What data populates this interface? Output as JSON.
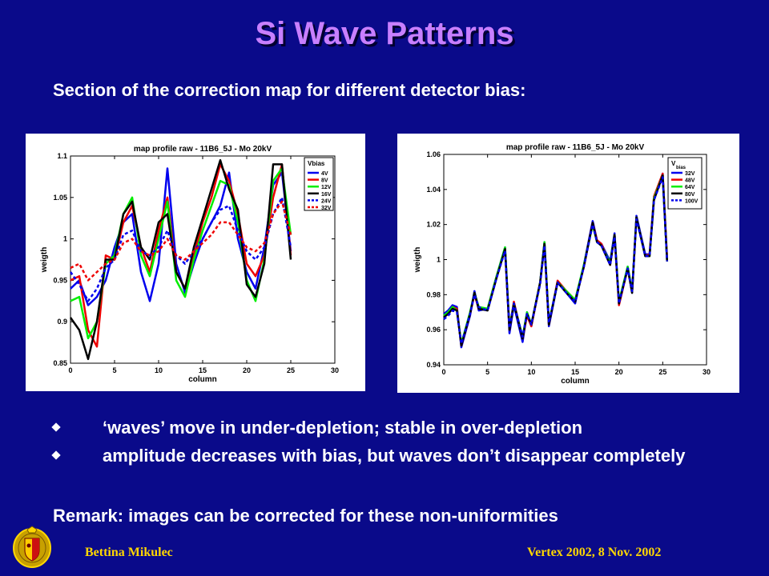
{
  "slide": {
    "title": "Si Wave Patterns",
    "subtitle": "Section of the correction map for different detector bias:",
    "bullets": [
      "‘waves’ move in under-depletion; stable in over-depletion",
      "amplitude decreases with bias, but waves don’t disappear completely"
    ],
    "remark": "Remark: images can be corrected for these non-uniformities",
    "footer_left": "Bettina Mikulec",
    "footer_right": "Vertex 2002, 8 Nov. 2002",
    "colors": {
      "background": "#0a0a8a",
      "title": "#c87fff",
      "footer": "#ffd700"
    }
  },
  "chart_data": [
    {
      "type": "line",
      "title": "map profile raw   -   11B6_5J   -   Mo 20kV",
      "xlabel": "column",
      "ylabel": "weigth",
      "xlim": [
        0,
        30
      ],
      "ylim": [
        0.85,
        1.1
      ],
      "xticks": [
        "0",
        "5",
        "10",
        "15",
        "20",
        "25",
        "30"
      ],
      "yticks": [
        "0.85",
        "0.9",
        "0.95",
        "1",
        "1.05",
        "1.1"
      ],
      "legend_title": "Vbias",
      "legend_position": "top-right",
      "x": [
        0,
        1,
        2,
        3,
        4,
        5,
        6,
        7,
        8,
        9,
        10,
        11,
        12,
        13,
        14,
        15,
        16,
        17,
        18,
        19,
        20,
        21,
        22,
        23,
        24,
        25
      ],
      "series": [
        {
          "name": "4V",
          "color": "#0000ee",
          "dash": false,
          "values": [
            0.94,
            0.95,
            0.92,
            0.93,
            0.95,
            0.99,
            1.02,
            1.03,
            0.96,
            0.925,
            0.97,
            1.085,
            0.97,
            0.935,
            0.97,
            1.0,
            1.02,
            1.04,
            1.08,
            1.0,
            0.96,
            0.94,
            0.99,
            1.065,
            1.08,
            0.985
          ]
        },
        {
          "name": "8V",
          "color": "#ee0000",
          "dash": false,
          "values": [
            0.95,
            0.955,
            0.89,
            0.87,
            0.98,
            0.975,
            1.02,
            1.04,
            0.99,
            0.96,
            1.01,
            1.05,
            0.96,
            0.94,
            0.98,
            1.02,
            1.05,
            1.09,
            1.07,
            1.03,
            0.97,
            0.955,
            0.98,
            1.05,
            1.09,
            0.98
          ]
        },
        {
          "name": "12V",
          "color": "#00ee00",
          "dash": false,
          "values": [
            0.925,
            0.93,
            0.88,
            0.9,
            0.97,
            0.98,
            1.03,
            1.05,
            0.98,
            0.955,
            1.0,
            1.045,
            0.95,
            0.93,
            0.975,
            1.01,
            1.04,
            1.07,
            1.065,
            1.02,
            0.95,
            0.925,
            0.975,
            1.07,
            1.085,
            1.005
          ]
        },
        {
          "name": "16V",
          "color": "#000000",
          "dash": false,
          "values": [
            0.905,
            0.89,
            0.855,
            0.9,
            0.975,
            0.975,
            1.03,
            1.045,
            0.99,
            0.975,
            1.02,
            1.03,
            0.96,
            0.94,
            0.99,
            1.025,
            1.06,
            1.095,
            1.06,
            1.035,
            0.945,
            0.93,
            0.97,
            1.09,
            1.09,
            0.975
          ]
        },
        {
          "name": "24V",
          "color": "#0000ee",
          "dash": true,
          "values": [
            0.96,
            0.945,
            0.925,
            0.94,
            0.965,
            0.975,
            1.005,
            1.01,
            0.985,
            0.98,
            0.99,
            1.01,
            0.98,
            0.97,
            0.985,
            1.0,
            1.02,
            1.035,
            1.04,
            1.01,
            0.985,
            0.975,
            0.99,
            1.03,
            1.05,
            0.99
          ]
        },
        {
          "name": "32V",
          "color": "#ee0000",
          "dash": true,
          "values": [
            0.965,
            0.97,
            0.95,
            0.96,
            0.97,
            0.975,
            0.995,
            1.0,
            0.985,
            0.98,
            0.985,
            1.0,
            0.98,
            0.975,
            0.985,
            0.995,
            1.005,
            1.02,
            1.02,
            1.005,
            0.99,
            0.985,
            0.995,
            1.03,
            1.045,
            1.005
          ]
        }
      ]
    },
    {
      "type": "line",
      "title": "map profile raw   -   11B6_5J   -   Mo 20kV",
      "xlabel": "column",
      "ylabel": "weigth",
      "xlim": [
        0,
        30
      ],
      "ylim": [
        0.94,
        1.06
      ],
      "xticks": [
        "0",
        "5",
        "10",
        "15",
        "20",
        "25",
        "30"
      ],
      "yticks": [
        "0.94",
        "0.96",
        "0.98",
        "1",
        "1.02",
        "1.04",
        "1.06"
      ],
      "legend_title": "V",
      "legend_title_sub": "bias",
      "legend_position": "top-right",
      "x": [
        0,
        0.5,
        1,
        1.5,
        2,
        3,
        3.5,
        4,
        5,
        6,
        7,
        7.5,
        8,
        9,
        9.5,
        10,
        11,
        11.5,
        12,
        13,
        14,
        15,
        16,
        17,
        17.5,
        18,
        19,
        19.5,
        20,
        21,
        21.5,
        22,
        23,
        23.5,
        24,
        25,
        25.5
      ],
      "series": [
        {
          "name": "32V",
          "color": "#0000ee",
          "dash": false,
          "values": [
            0.969,
            0.971,
            0.974,
            0.973,
            0.95,
            0.968,
            0.982,
            0.971,
            0.972,
            0.99,
            1.007,
            0.958,
            0.974,
            0.953,
            0.97,
            0.962,
            0.987,
            1.01,
            0.962,
            0.987,
            0.981,
            0.975,
            0.997,
            1.022,
            1.011,
            1.009,
            0.999,
            1.015,
            0.975,
            0.996,
            0.981,
            1.025,
            1.003,
            1.003,
            1.035,
            1.049,
            0.999
          ]
        },
        {
          "name": "48V",
          "color": "#ee0000",
          "dash": false,
          "values": [
            0.968,
            0.969,
            0.973,
            0.972,
            0.951,
            0.969,
            0.98,
            0.972,
            0.972,
            0.99,
            1.006,
            0.96,
            0.976,
            0.955,
            0.968,
            0.962,
            0.987,
            1.009,
            0.963,
            0.988,
            0.982,
            0.977,
            0.996,
            1.021,
            1.011,
            1.009,
            0.997,
            1.014,
            0.974,
            0.995,
            0.982,
            1.024,
            1.002,
            1.003,
            1.036,
            1.049,
            1.001
          ]
        },
        {
          "name": "64V",
          "color": "#00ee00",
          "dash": false,
          "values": [
            0.968,
            0.97,
            0.973,
            0.971,
            0.952,
            0.97,
            0.981,
            0.973,
            0.972,
            0.99,
            1.007,
            0.961,
            0.975,
            0.956,
            0.97,
            0.963,
            0.987,
            1.01,
            0.964,
            0.987,
            0.982,
            0.977,
            0.997,
            1.02,
            1.01,
            1.008,
            0.998,
            1.014,
            0.976,
            0.996,
            0.982,
            1.024,
            1.002,
            1.002,
            1.035,
            1.048,
            0.999
          ]
        },
        {
          "name": "80V",
          "color": "#000000",
          "dash": false,
          "values": [
            0.967,
            0.969,
            0.972,
            0.971,
            0.951,
            0.969,
            0.981,
            0.972,
            0.971,
            0.989,
            1.006,
            0.96,
            0.975,
            0.955,
            0.969,
            0.963,
            0.987,
            1.009,
            0.963,
            0.987,
            0.981,
            0.976,
            0.996,
            1.021,
            1.01,
            1.008,
            0.997,
            1.014,
            0.975,
            0.995,
            0.981,
            1.024,
            1.002,
            1.002,
            1.034,
            1.048,
            0.999
          ]
        },
        {
          "name": "100V",
          "color": "#0000ee",
          "dash": true,
          "values": [
            0.966,
            0.968,
            0.971,
            0.97,
            0.952,
            0.969,
            0.98,
            0.973,
            0.971,
            0.989,
            1.005,
            0.961,
            0.975,
            0.956,
            0.969,
            0.963,
            0.986,
            1.008,
            0.964,
            0.987,
            0.981,
            0.976,
            0.996,
            1.02,
            1.01,
            1.008,
            0.997,
            1.013,
            0.975,
            0.995,
            0.982,
            1.023,
            1.002,
            1.002,
            1.034,
            1.047,
            0.999
          ]
        }
      ]
    }
  ]
}
